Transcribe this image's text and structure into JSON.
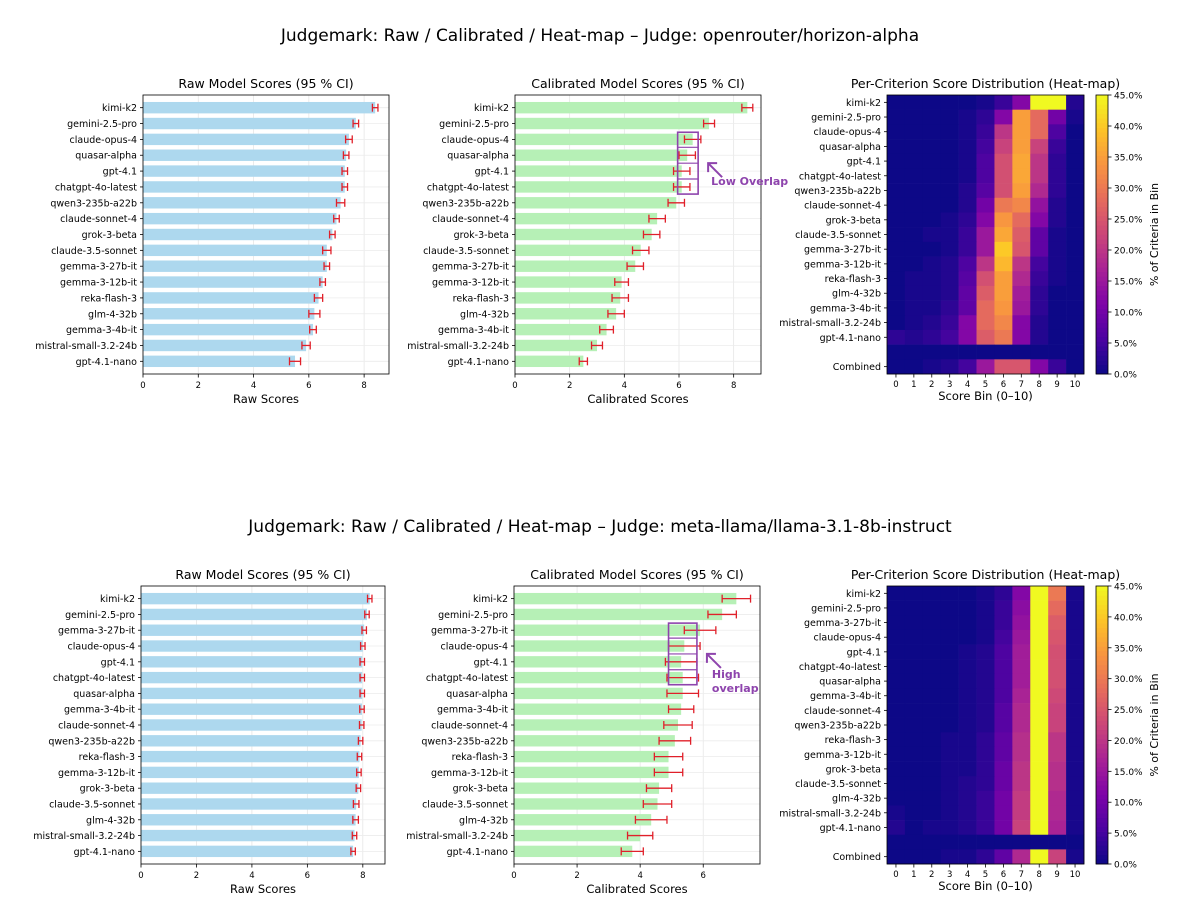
{
  "figures": [
    {
      "suptitle": "Judgemark: Raw / Calibrated / Heat-map – Judge: openrouter/horizon-alpha",
      "raw": {
        "title": "Raw Model Scores (95 % CI)",
        "xlabel": "Raw Scores",
        "xlim": [
          0,
          8.9
        ],
        "xticks": [
          "0",
          "2",
          "4",
          "6",
          "8"
        ],
        "models": [
          "kimi-k2",
          "gemini-2.5-pro",
          "claude-opus-4",
          "quasar-alpha",
          "gpt-4.1",
          "chatgpt-4o-latest",
          "qwen3-235b-a22b",
          "claude-sonnet-4",
          "grok-3-beta",
          "claude-3.5-sonnet",
          "gemma-3-27b-it",
          "gemma-3-12b-it",
          "reka-flash-3",
          "glm-4-32b",
          "gemma-3-4b-it",
          "mistral-small-3.2-24b",
          "gpt-4.1-nano"
        ],
        "values": [
          8.4,
          7.7,
          7.45,
          7.35,
          7.3,
          7.3,
          7.15,
          7.0,
          6.85,
          6.65,
          6.65,
          6.5,
          6.35,
          6.2,
          6.15,
          5.9,
          5.5
        ],
        "ci": [
          0.1,
          0.1,
          0.12,
          0.1,
          0.1,
          0.1,
          0.15,
          0.1,
          0.1,
          0.15,
          0.1,
          0.1,
          0.15,
          0.2,
          0.12,
          0.15,
          0.2
        ]
      },
      "cal": {
        "title": "Calibrated Model Scores (95 % CI)",
        "xlabel": "Calibrated Scores",
        "xlim": [
          0,
          9.0
        ],
        "xticks": [
          "0",
          "2",
          "4",
          "6",
          "8"
        ],
        "models": [
          "kimi-k2",
          "gemini-2.5-pro",
          "claude-opus-4",
          "quasar-alpha",
          "gpt-4.1",
          "chatgpt-4o-latest",
          "qwen3-235b-a22b",
          "claude-sonnet-4",
          "grok-3-beta",
          "claude-3.5-sonnet",
          "gemma-3-27b-it",
          "gemma-3-12b-it",
          "reka-flash-3",
          "glm-4-32b",
          "gemma-3-4b-it",
          "mistral-small-3.2-24b",
          "gpt-4.1-nano"
        ],
        "values": [
          8.5,
          7.1,
          6.5,
          6.3,
          6.1,
          6.1,
          5.9,
          5.2,
          5.0,
          4.6,
          4.4,
          3.9,
          3.85,
          3.7,
          3.35,
          3.0,
          2.5
        ],
        "ci": [
          0.2,
          0.2,
          0.3,
          0.3,
          0.3,
          0.3,
          0.3,
          0.3,
          0.3,
          0.3,
          0.3,
          0.25,
          0.3,
          0.3,
          0.25,
          0.2,
          0.15
        ],
        "annotation": [
          "Low Overlap"
        ],
        "box_rows": [
          2,
          5
        ],
        "box_x": [
          5.95,
          6.7
        ]
      },
      "heat": {
        "title": "Per-Criterion Score Distribution (Heat-map)",
        "xlabel": "Score Bin (0–10)",
        "cbar_label": "% of Criteria in Bin",
        "cbar_ticks": [
          "0.0%",
          "5.0%",
          "10.0%",
          "15.0%",
          "20.0%",
          "25.0%",
          "30.0%",
          "35.0%",
          "40.0%",
          "45.0%"
        ],
        "bins": [
          "0",
          "1",
          "2",
          "3",
          "4",
          "5",
          "6",
          "7",
          "8",
          "9",
          "10"
        ],
        "rows": [
          "kimi-k2",
          "gemini-2.5-pro",
          "claude-opus-4",
          "quasar-alpha",
          "gpt-4.1",
          "chatgpt-4o-latest",
          "qwen3-235b-a22b",
          "claude-sonnet-4",
          "grok-3-beta",
          "claude-3.5-sonnet",
          "gemma-3-27b-it",
          "gemma-3-12b-it",
          "reka-flash-3",
          "glm-4-32b",
          "gemma-3-4b-it",
          "mistral-small-3.2-24b",
          "gpt-4.1-nano"
        ],
        "combined_label": "Combined",
        "matrix": [
          [
            0,
            0,
            0,
            0,
            0,
            1,
            4,
            12,
            45,
            45,
            2
          ],
          [
            0,
            0,
            0,
            0,
            1,
            3,
            12,
            35,
            28,
            10,
            1
          ],
          [
            0,
            0,
            0,
            0,
            1,
            4,
            20,
            35,
            28,
            6,
            0
          ],
          [
            0,
            0,
            0,
            0,
            1,
            5,
            22,
            35,
            22,
            4,
            0
          ],
          [
            0,
            0,
            0,
            0,
            1,
            6,
            24,
            36,
            20,
            3,
            0
          ],
          [
            0,
            0,
            0,
            0,
            1,
            6,
            24,
            36,
            20,
            3,
            0
          ],
          [
            0,
            0,
            0,
            0,
            2,
            7,
            24,
            35,
            18,
            3,
            0
          ],
          [
            0,
            0,
            0,
            0,
            2,
            10,
            30,
            32,
            14,
            2,
            0
          ],
          [
            0,
            0,
            0,
            1,
            3,
            12,
            34,
            28,
            12,
            2,
            0
          ],
          [
            0,
            0,
            1,
            1,
            4,
            15,
            36,
            26,
            8,
            1,
            0
          ],
          [
            0,
            0,
            0,
            1,
            4,
            15,
            40,
            25,
            8,
            1,
            0
          ],
          [
            0,
            0,
            1,
            2,
            6,
            20,
            38,
            20,
            5,
            1,
            0
          ],
          [
            0,
            1,
            1,
            2,
            7,
            24,
            35,
            18,
            4,
            1,
            0
          ],
          [
            0,
            1,
            1,
            2,
            8,
            26,
            35,
            16,
            3,
            0,
            0
          ],
          [
            0,
            1,
            1,
            3,
            8,
            28,
            34,
            15,
            3,
            0,
            0
          ],
          [
            0,
            1,
            2,
            4,
            12,
            28,
            32,
            12,
            2,
            0,
            0
          ],
          [
            3,
            2,
            3,
            5,
            12,
            26,
            30,
            12,
            2,
            0,
            0
          ]
        ],
        "combined": [
          0,
          0,
          1,
          2,
          5,
          15,
          25,
          25,
          12,
          4,
          0
        ]
      }
    },
    {
      "suptitle": "Judgemark: Raw / Calibrated / Heat-map – Judge: meta-llama/llama-3.1-8b-instruct",
      "raw": {
        "title": "Raw Model Scores (95 % CI)",
        "xlabel": "Raw Scores",
        "xlim": [
          0,
          8.8
        ],
        "xticks": [
          "0",
          "2",
          "4",
          "6",
          "8"
        ],
        "models": [
          "kimi-k2",
          "gemini-2.5-pro",
          "gemma-3-27b-it",
          "claude-opus-4",
          "gpt-4.1",
          "chatgpt-4o-latest",
          "quasar-alpha",
          "gemma-3-4b-it",
          "claude-sonnet-4",
          "qwen3-235b-a22b",
          "reka-flash-3",
          "gemma-3-12b-it",
          "grok-3-beta",
          "claude-3.5-sonnet",
          "glm-4-32b",
          "mistral-small-3.2-24b",
          "gpt-4.1-nano"
        ],
        "values": [
          8.25,
          8.15,
          8.05,
          8.0,
          7.98,
          7.98,
          7.98,
          7.97,
          7.96,
          7.92,
          7.88,
          7.86,
          7.84,
          7.76,
          7.74,
          7.7,
          7.65
        ],
        "ci": [
          0.08,
          0.08,
          0.08,
          0.08,
          0.08,
          0.08,
          0.08,
          0.08,
          0.08,
          0.08,
          0.08,
          0.08,
          0.08,
          0.1,
          0.1,
          0.08,
          0.08
        ]
      },
      "cal": {
        "title": "Calibrated Model Scores (95 % CI)",
        "xlabel": "Calibrated Scores",
        "xlim": [
          0,
          7.8
        ],
        "xticks": [
          "0",
          "2",
          "4",
          "6"
        ],
        "models": [
          "kimi-k2",
          "gemini-2.5-pro",
          "gemma-3-27b-it",
          "claude-opus-4",
          "gpt-4.1",
          "chatgpt-4o-latest",
          "quasar-alpha",
          "gemma-3-4b-it",
          "claude-sonnet-4",
          "qwen3-235b-a22b",
          "reka-flash-3",
          "gemma-3-12b-it",
          "grok-3-beta",
          "claude-3.5-sonnet",
          "glm-4-32b",
          "mistral-small-3.2-24b",
          "gpt-4.1-nano"
        ],
        "values": [
          7.05,
          6.6,
          5.9,
          5.4,
          5.3,
          5.35,
          5.35,
          5.3,
          5.2,
          5.1,
          4.9,
          4.9,
          4.6,
          4.55,
          4.35,
          4.0,
          3.75
        ],
        "ci": [
          0.45,
          0.45,
          0.5,
          0.5,
          0.5,
          0.5,
          0.5,
          0.4,
          0.45,
          0.5,
          0.45,
          0.45,
          0.4,
          0.45,
          0.5,
          0.4,
          0.35
        ],
        "annotation": [
          "High",
          "overlap"
        ],
        "box_rows": [
          2,
          5
        ],
        "box_x": [
          4.9,
          5.8
        ]
      },
      "heat": {
        "title": "Per-Criterion Score Distribution (Heat-map)",
        "xlabel": "Score Bin (0–10)",
        "cbar_label": "% of Criteria in Bin",
        "cbar_ticks": [
          "0.0%",
          "5.0%",
          "10.0%",
          "15.0%",
          "20.0%",
          "25.0%",
          "30.0%",
          "35.0%",
          "40.0%",
          "45.0%"
        ],
        "bins": [
          "0",
          "1",
          "2",
          "3",
          "4",
          "5",
          "6",
          "7",
          "8",
          "9",
          "10"
        ],
        "rows": [
          "kimi-k2",
          "gemini-2.5-pro",
          "gemma-3-27b-it",
          "claude-opus-4",
          "gpt-4.1",
          "chatgpt-4o-latest",
          "quasar-alpha",
          "gemma-3-4b-it",
          "claude-sonnet-4",
          "qwen3-235b-a22b",
          "reka-flash-3",
          "gemma-3-12b-it",
          "grok-3-beta",
          "claude-3.5-sonnet",
          "glm-4-32b",
          "mistral-small-3.2-24b",
          "gpt-4.1-nano"
        ],
        "combined_label": "Combined",
        "matrix": [
          [
            0,
            0,
            0,
            0,
            0,
            1,
            3,
            12,
            45,
            30,
            1
          ],
          [
            0,
            0,
            0,
            0,
            0,
            1,
            4,
            13,
            45,
            28,
            1
          ],
          [
            0,
            0,
            0,
            0,
            0,
            1,
            4,
            14,
            45,
            26,
            1
          ],
          [
            0,
            0,
            0,
            0,
            0,
            1,
            5,
            15,
            45,
            25,
            1
          ],
          [
            0,
            0,
            0,
            0,
            1,
            2,
            6,
            16,
            45,
            24,
            1
          ],
          [
            0,
            0,
            0,
            0,
            1,
            2,
            6,
            16,
            45,
            24,
            1
          ],
          [
            0,
            0,
            0,
            0,
            1,
            2,
            6,
            16,
            45,
            24,
            1
          ],
          [
            0,
            0,
            0,
            0,
            1,
            2,
            6,
            17,
            45,
            23,
            1
          ],
          [
            0,
            0,
            0,
            0,
            1,
            2,
            7,
            18,
            45,
            22,
            1
          ],
          [
            0,
            0,
            0,
            0,
            1,
            2,
            7,
            18,
            45,
            22,
            1
          ],
          [
            0,
            0,
            0,
            1,
            1,
            3,
            8,
            19,
            45,
            20,
            1
          ],
          [
            0,
            0,
            0,
            1,
            1,
            3,
            8,
            19,
            45,
            20,
            1
          ],
          [
            0,
            0,
            0,
            1,
            1,
            3,
            9,
            20,
            45,
            19,
            1
          ],
          [
            0,
            0,
            0,
            1,
            2,
            3,
            9,
            20,
            45,
            19,
            1
          ],
          [
            0,
            0,
            0,
            1,
            2,
            4,
            10,
            21,
            45,
            18,
            1
          ],
          [
            1,
            0,
            0,
            1,
            2,
            4,
            10,
            21,
            45,
            18,
            1
          ],
          [
            2,
            0,
            1,
            1,
            2,
            4,
            10,
            22,
            45,
            17,
            1
          ]
        ],
        "combined": [
          0,
          0,
          0,
          1,
          1,
          3,
          8,
          18,
          45,
          22,
          1
        ]
      }
    }
  ]
}
